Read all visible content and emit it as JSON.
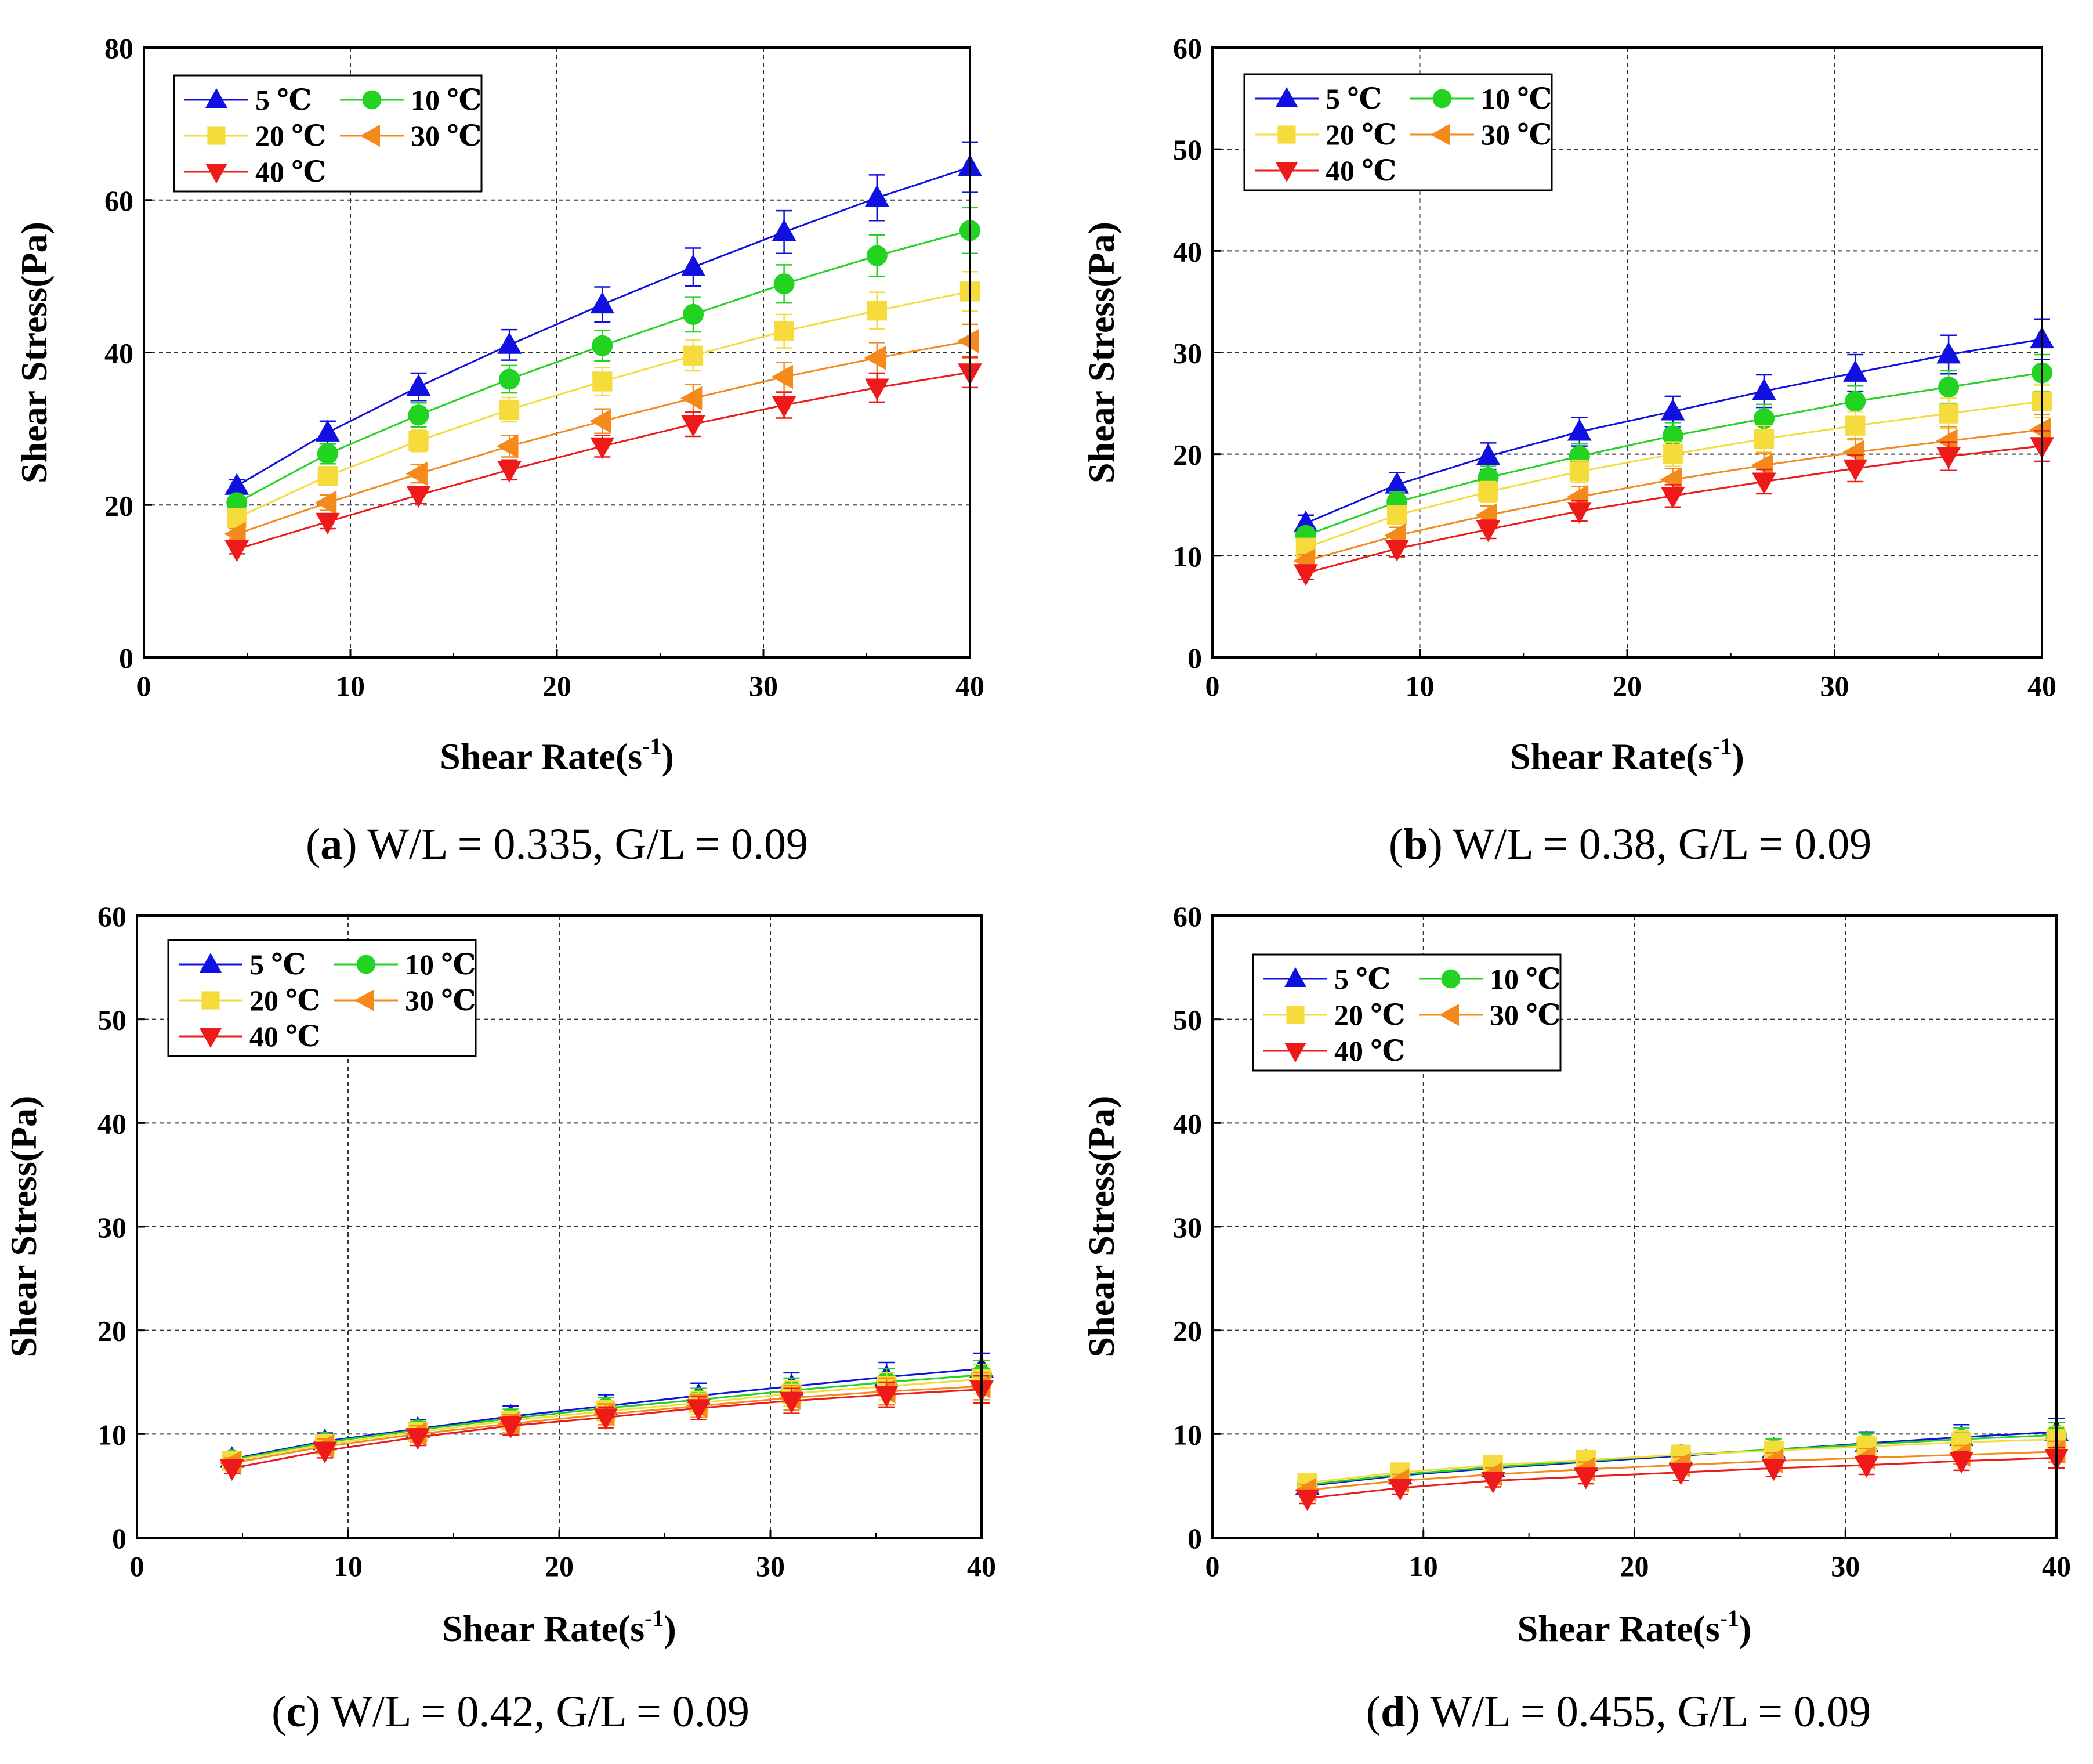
{
  "colors": {
    "5": "#1010e0",
    "10": "#22d322",
    "20": "#f5dc3c",
    "30": "#f48a1c",
    "40": "#ee1a1a"
  },
  "chart_data": [
    {
      "type": "line",
      "panel": "a",
      "caption_label": "a",
      "caption_text": "W/L = 0.335, G/L = 0.09",
      "xlabel": "Shear Rate(s",
      "xlabel_sup": "-1",
      "xlabel_tail": ")",
      "ylabel": "Shear Stress(Pa)",
      "xlim": [
        0,
        40
      ],
      "ylim": [
        0,
        80
      ],
      "xticks": [
        0,
        10,
        20,
        30,
        40
      ],
      "yticks": [
        0,
        20,
        40,
        60,
        80
      ],
      "x": [
        4.5,
        8.9,
        13.3,
        17.7,
        22.2,
        26.6,
        31.0,
        35.5,
        40.0
      ],
      "series": [
        {
          "name": "5 ℃",
          "key": "5",
          "marker": "triangle-up",
          "values": [
            22.5,
            29.5,
            35.5,
            41.0,
            46.3,
            51.2,
            55.8,
            60.3,
            64.3
          ],
          "err": [
            0.8,
            1.5,
            1.8,
            2.0,
            2.3,
            2.5,
            2.8,
            3.0,
            3.3
          ]
        },
        {
          "name": "10 ℃",
          "key": "10",
          "marker": "circle",
          "values": [
            20.3,
            26.7,
            31.8,
            36.5,
            40.9,
            45.0,
            49.0,
            52.7,
            56.0
          ],
          "err": [
            0.8,
            1.3,
            1.6,
            1.8,
            2.0,
            2.3,
            2.5,
            2.7,
            3.0
          ]
        },
        {
          "name": "20 ℃",
          "key": "20",
          "marker": "square",
          "values": [
            18.3,
            23.8,
            28.4,
            32.5,
            36.2,
            39.6,
            42.8,
            45.5,
            48.0
          ],
          "err": [
            0.7,
            1.2,
            1.4,
            1.6,
            1.8,
            2.0,
            2.2,
            2.4,
            2.6
          ]
        },
        {
          "name": "30 ℃",
          "key": "30",
          "marker": "triangle-left",
          "values": [
            16.2,
            20.3,
            24.1,
            27.7,
            31.0,
            34.0,
            36.8,
            39.3,
            41.5
          ],
          "err": [
            0.7,
            1.0,
            1.2,
            1.4,
            1.6,
            1.8,
            1.9,
            2.0,
            2.2
          ]
        },
        {
          "name": "40 ℃",
          "key": "40",
          "marker": "triangle-down",
          "values": [
            14.2,
            17.8,
            21.3,
            24.6,
            27.7,
            30.6,
            33.1,
            35.4,
            37.4
          ],
          "err": [
            0.6,
            0.9,
            1.1,
            1.3,
            1.4,
            1.6,
            1.7,
            1.9,
            2.0
          ]
        }
      ]
    },
    {
      "type": "line",
      "panel": "b",
      "caption_label": "b",
      "caption_text": "W/L = 0.38, G/L = 0.09",
      "xlabel": "Shear Rate(s",
      "xlabel_sup": "-1",
      "xlabel_tail": ")",
      "ylabel": "Shear Stress(Pa)",
      "xlim": [
        0,
        40
      ],
      "ylim": [
        0,
        60
      ],
      "xticks": [
        0,
        10,
        20,
        30,
        40
      ],
      "yticks": [
        0,
        10,
        20,
        30,
        40,
        50,
        60
      ],
      "x": [
        4.5,
        8.9,
        13.3,
        17.7,
        22.2,
        26.6,
        31.0,
        35.5,
        40.0
      ],
      "series": [
        {
          "name": "5 ℃",
          "key": "5",
          "marker": "triangle-up",
          "values": [
            13.2,
            17.0,
            19.8,
            22.2,
            24.2,
            26.2,
            28.0,
            29.8,
            31.3
          ],
          "err": [
            0.8,
            1.2,
            1.3,
            1.4,
            1.5,
            1.6,
            1.8,
            1.9,
            2.0
          ]
        },
        {
          "name": "10 ℃",
          "key": "10",
          "marker": "circle",
          "values": [
            12.0,
            15.3,
            17.7,
            19.8,
            21.8,
            23.5,
            25.2,
            26.6,
            28.0
          ],
          "err": [
            0.7,
            1.0,
            1.1,
            1.2,
            1.3,
            1.4,
            1.5,
            1.6,
            1.8
          ]
        },
        {
          "name": "20 ℃",
          "key": "20",
          "marker": "square",
          "values": [
            10.8,
            14.0,
            16.3,
            18.3,
            20.0,
            21.5,
            22.8,
            24.0,
            25.2
          ],
          "err": [
            0.7,
            0.9,
            1.0,
            1.1,
            1.2,
            1.3,
            1.4,
            1.5,
            1.6
          ]
        },
        {
          "name": "30 ℃",
          "key": "30",
          "marker": "triangle-left",
          "values": [
            9.5,
            12.0,
            14.0,
            15.8,
            17.5,
            18.9,
            20.2,
            21.3,
            22.4
          ],
          "err": [
            0.6,
            0.8,
            0.9,
            1.0,
            1.1,
            1.2,
            1.3,
            1.4,
            1.5
          ]
        },
        {
          "name": "40 ℃",
          "key": "40",
          "marker": "triangle-down",
          "values": [
            8.3,
            10.7,
            12.6,
            14.4,
            15.9,
            17.3,
            18.6,
            19.8,
            20.8
          ],
          "err": [
            0.6,
            0.8,
            0.9,
            1.0,
            1.1,
            1.2,
            1.3,
            1.4,
            1.5
          ]
        }
      ]
    },
    {
      "type": "line",
      "panel": "c",
      "caption_label": "c",
      "caption_text": "W/L = 0.42, G/L = 0.09",
      "xlabel": "Shear Rate(s",
      "xlabel_sup": "-1",
      "xlabel_tail": ")",
      "ylabel": "Shear Stress(Pa)",
      "xlim": [
        0,
        40
      ],
      "ylim": [
        0,
        60
      ],
      "xticks": [
        0,
        10,
        20,
        30,
        40
      ],
      "yticks": [
        0,
        10,
        20,
        30,
        40,
        50,
        60
      ],
      "x": [
        4.5,
        8.9,
        13.3,
        17.7,
        22.2,
        26.6,
        31.0,
        35.5,
        40.0
      ],
      "series": [
        {
          "name": "5 ℃",
          "key": "5",
          "marker": "triangle-up",
          "values": [
            7.6,
            9.3,
            10.5,
            11.7,
            12.7,
            13.7,
            14.6,
            15.5,
            16.3
          ],
          "err": [
            0.5,
            0.8,
            0.9,
            1.0,
            1.1,
            1.2,
            1.3,
            1.4,
            1.5
          ]
        },
        {
          "name": "10 ℃",
          "key": "10",
          "marker": "circle",
          "values": [
            7.5,
            9.2,
            10.4,
            11.5,
            12.5,
            13.3,
            14.2,
            15.0,
            15.7
          ],
          "err": [
            0.5,
            0.7,
            0.8,
            0.9,
            1.0,
            1.1,
            1.2,
            1.3,
            1.4
          ]
        },
        {
          "name": "20 ℃",
          "key": "20",
          "marker": "square",
          "values": [
            7.4,
            9.0,
            10.2,
            11.3,
            12.2,
            13.0,
            13.9,
            14.6,
            15.3
          ],
          "err": [
            0.5,
            0.7,
            0.8,
            0.9,
            1.0,
            1.1,
            1.2,
            1.3,
            1.4
          ]
        },
        {
          "name": "30 ℃",
          "key": "30",
          "marker": "triangle-left",
          "values": [
            7.2,
            8.8,
            10.0,
            11.0,
            11.9,
            12.7,
            13.5,
            14.1,
            14.6
          ],
          "err": [
            0.5,
            0.7,
            0.8,
            0.9,
            1.0,
            1.1,
            1.2,
            1.3,
            1.3
          ]
        },
        {
          "name": "40 ℃",
          "key": "40",
          "marker": "triangle-down",
          "values": [
            6.7,
            8.4,
            9.7,
            10.8,
            11.6,
            12.5,
            13.2,
            13.8,
            14.3
          ],
          "err": [
            0.5,
            0.7,
            0.8,
            0.9,
            1.0,
            1.1,
            1.2,
            1.2,
            1.3
          ]
        }
      ]
    },
    {
      "type": "line",
      "panel": "d",
      "caption_label": "d",
      "caption_text": "W/L = 0.455, G/L = 0.09",
      "xlabel": "Shear Rate(s",
      "xlabel_sup": "-1",
      "xlabel_tail": ")",
      "ylabel": "Shear Stress(Pa)",
      "xlim": [
        0,
        40
      ],
      "ylim": [
        0,
        60
      ],
      "xticks": [
        0,
        10,
        20,
        30,
        40
      ],
      "yticks": [
        0,
        10,
        20,
        30,
        40,
        50,
        60
      ],
      "x": [
        4.5,
        8.9,
        13.3,
        17.7,
        22.2,
        26.6,
        31.0,
        35.5,
        40.0
      ],
      "series": [
        {
          "name": "5 ℃",
          "key": "5",
          "marker": "triangle-up",
          "values": [
            5.0,
            6.0,
            6.7,
            7.3,
            7.9,
            8.5,
            9.1,
            9.7,
            10.2
          ],
          "err": [
            0.5,
            0.6,
            0.7,
            0.8,
            0.9,
            1.0,
            1.1,
            1.2,
            1.3
          ]
        },
        {
          "name": "10 ℃",
          "key": "10",
          "marker": "circle",
          "values": [
            5.1,
            6.1,
            6.8,
            7.4,
            8.0,
            8.5,
            9.0,
            9.5,
            9.9
          ],
          "err": [
            0.5,
            0.6,
            0.7,
            0.8,
            0.9,
            1.0,
            1.1,
            1.1,
            1.2
          ]
        },
        {
          "name": "20 ℃",
          "key": "20",
          "marker": "square",
          "values": [
            5.3,
            6.3,
            7.0,
            7.5,
            8.0,
            8.4,
            8.8,
            9.2,
            9.5
          ],
          "err": [
            0.5,
            0.6,
            0.7,
            0.8,
            0.9,
            0.9,
            1.0,
            1.1,
            1.2
          ]
        },
        {
          "name": "30 ℃",
          "key": "30",
          "marker": "triangle-left",
          "values": [
            4.6,
            5.5,
            6.1,
            6.6,
            7.0,
            7.4,
            7.7,
            8.0,
            8.3
          ],
          "err": [
            0.5,
            0.6,
            0.6,
            0.7,
            0.8,
            0.8,
            0.9,
            0.9,
            1.0
          ]
        },
        {
          "name": "40 ℃",
          "key": "40",
          "marker": "triangle-down",
          "values": [
            3.8,
            4.8,
            5.5,
            5.9,
            6.3,
            6.7,
            7.0,
            7.4,
            7.7
          ],
          "err": [
            0.5,
            0.6,
            0.6,
            0.7,
            0.8,
            0.8,
            0.9,
            0.9,
            1.0
          ]
        }
      ]
    }
  ]
}
